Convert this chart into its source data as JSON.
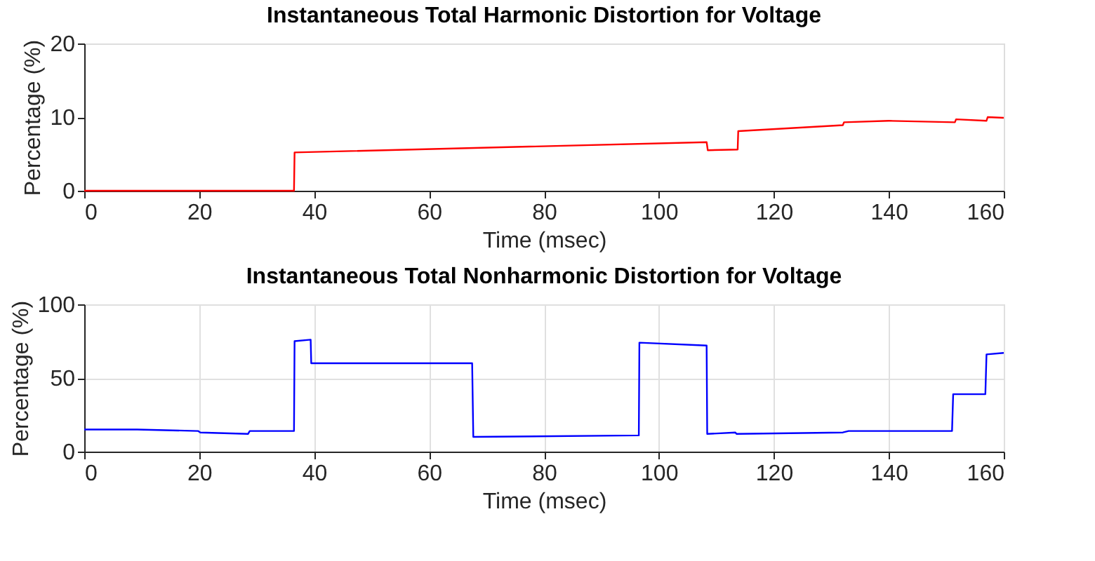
{
  "chart_data": [
    {
      "type": "line",
      "title": "Instantaneous Total Harmonic Distortion for Voltage",
      "xlabel": "Time (msec)",
      "ylabel": "Percentage (%)",
      "xlim": [
        0,
        160
      ],
      "xticks": [
        0,
        20,
        40,
        60,
        80,
        100,
        120,
        140,
        160
      ],
      "ylim": [
        0,
        20
      ],
      "yticks": [
        0,
        10,
        20
      ],
      "grid": false,
      "marker": "none",
      "line_style": "solid",
      "series": [
        {
          "color": "#ff0000",
          "x": [
            0,
            36.5,
            36.6,
            108.3,
            108.5,
            113.7,
            113.8,
            132,
            132.2,
            140,
            151.5,
            151.7,
            157,
            157.2,
            160
          ],
          "values": [
            0,
            0,
            5.2,
            6.6,
            5.5,
            5.6,
            8.1,
            8.9,
            9.3,
            9.5,
            9.3,
            9.7,
            9.5,
            10.0,
            9.9
          ]
        }
      ]
    },
    {
      "type": "line",
      "title": "Instantaneous Total Nonharmonic Distortion for Voltage",
      "xlabel": "Time (msec)",
      "ylabel": "Percentage (%)",
      "xlim": [
        0,
        160
      ],
      "xticks": [
        0,
        20,
        40,
        60,
        80,
        100,
        120,
        140,
        160
      ],
      "ylim": [
        0,
        100
      ],
      "yticks": [
        0,
        50,
        100
      ],
      "grid": true,
      "marker": "none",
      "line_style": "solid",
      "series": [
        {
          "color": "#0000ff",
          "x": [
            0,
            9,
            9.2,
            19.8,
            20.2,
            28.5,
            28.8,
            36.5,
            36.6,
            39.4,
            39.5,
            53,
            67.5,
            67.7,
            96.5,
            96.6,
            108.3,
            108.4,
            113.3,
            113.5,
            132,
            133,
            151,
            151.2,
            156.8,
            157,
            160
          ],
          "values": [
            15,
            15,
            15,
            14,
            13,
            12,
            14,
            14,
            75,
            76,
            60,
            60,
            60,
            10,
            11,
            74,
            72,
            12,
            13,
            12,
            13,
            14,
            14,
            39,
            39,
            66,
            67
          ]
        }
      ]
    }
  ]
}
